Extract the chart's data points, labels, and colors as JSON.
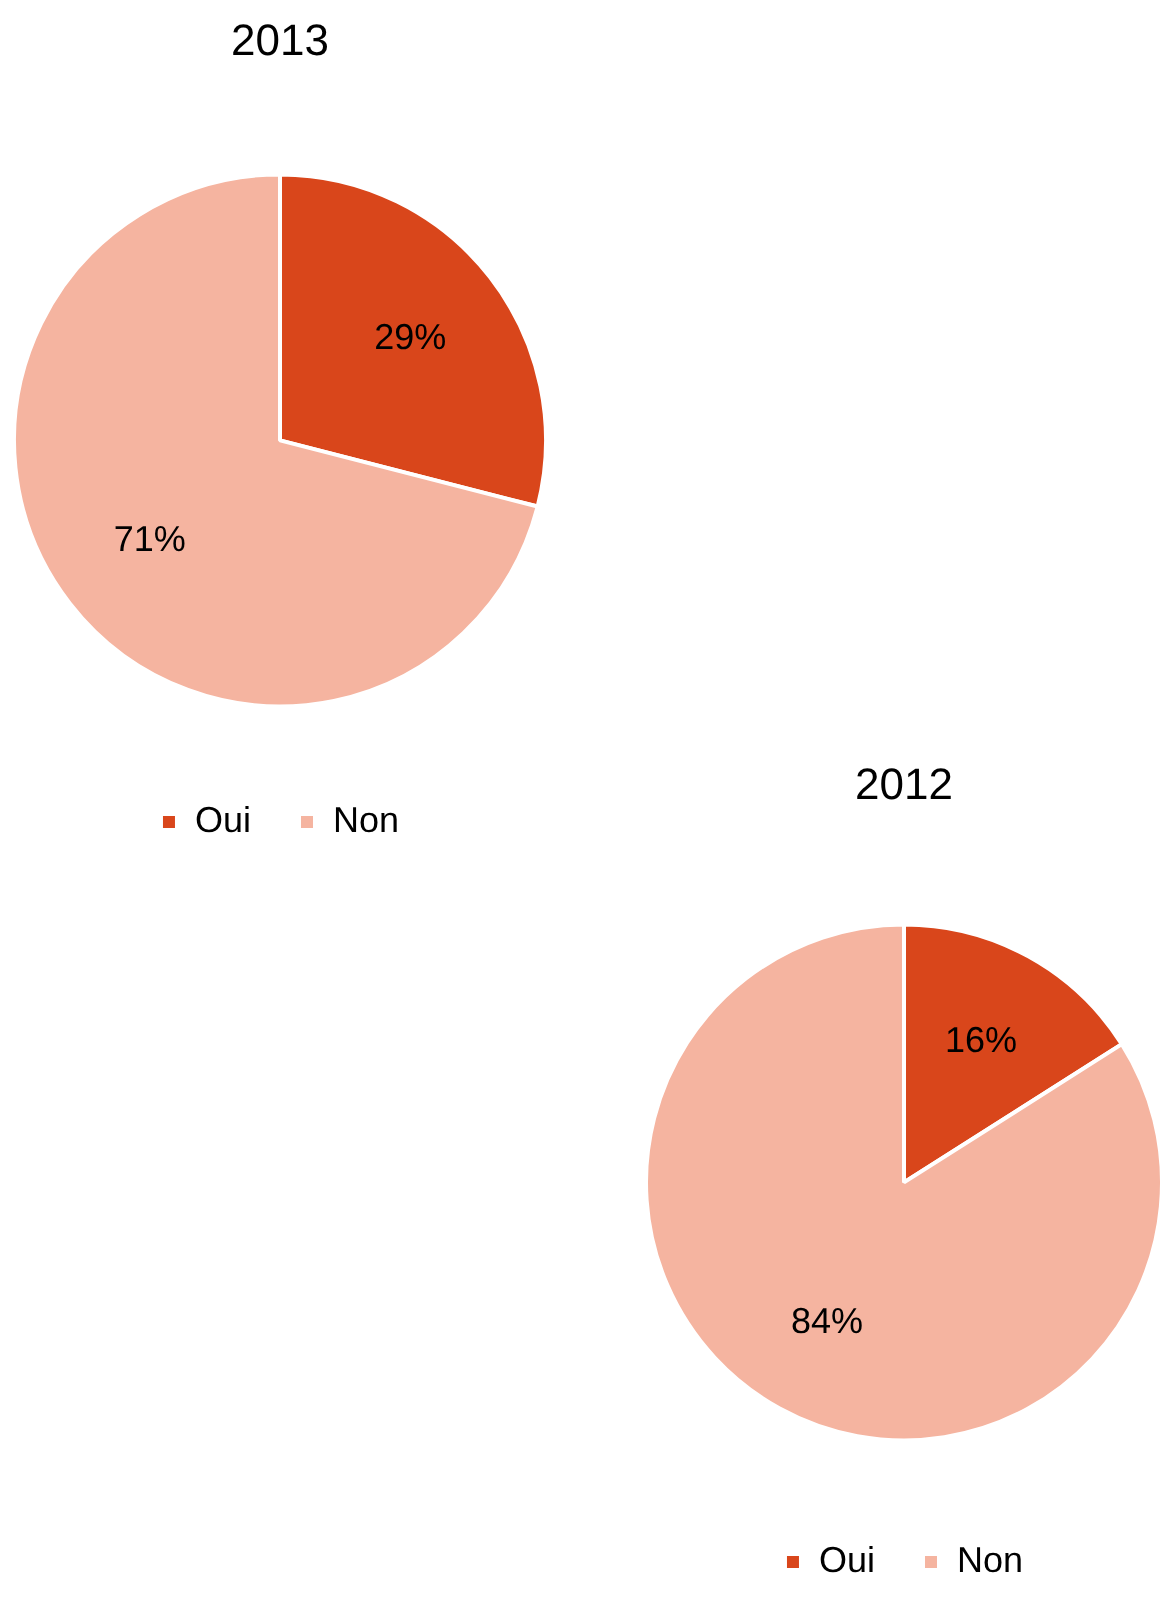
{
  "chart_data": [
    {
      "type": "pie",
      "title": "2013",
      "categories": [
        "Oui",
        "Non"
      ],
      "values": [
        29,
        71
      ],
      "value_labels": [
        "29%",
        "71%"
      ],
      "colors": [
        "#d9461b",
        "#f5b4a0"
      ],
      "legend": "bottom"
    },
    {
      "type": "pie",
      "title": "2012",
      "categories": [
        "Oui",
        "Non"
      ],
      "values": [
        16,
        84
      ],
      "value_labels": [
        "16%",
        "84%"
      ],
      "colors": [
        "#d9461b",
        "#f5b4a0"
      ],
      "legend": "bottom"
    }
  ]
}
